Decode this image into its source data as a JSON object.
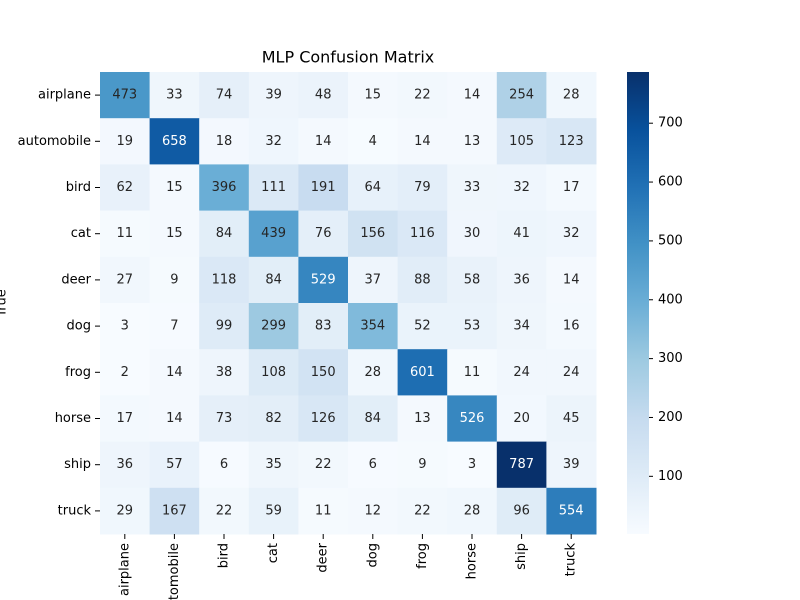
{
  "chart_data": {
    "type": "heatmap",
    "title": "MLP Confusion Matrix",
    "ylabel": "True",
    "x_categories": [
      "airplane",
      "automobile",
      "bird",
      "cat",
      "deer",
      "dog",
      "frog",
      "horse",
      "ship",
      "truck"
    ],
    "y_categories": [
      "airplane",
      "automobile",
      "bird",
      "cat",
      "deer",
      "dog",
      "frog",
      "horse",
      "ship",
      "truck"
    ],
    "values": [
      [
        473,
        33,
        74,
        39,
        48,
        15,
        22,
        14,
        254,
        28
      ],
      [
        19,
        658,
        18,
        32,
        14,
        4,
        14,
        13,
        105,
        123
      ],
      [
        62,
        15,
        396,
        111,
        191,
        64,
        79,
        33,
        32,
        17
      ],
      [
        11,
        15,
        84,
        439,
        76,
        156,
        116,
        30,
        41,
        32
      ],
      [
        27,
        9,
        118,
        84,
        529,
        37,
        88,
        58,
        36,
        14
      ],
      [
        3,
        7,
        99,
        299,
        83,
        354,
        52,
        53,
        34,
        16
      ],
      [
        2,
        14,
        38,
        108,
        150,
        28,
        601,
        11,
        24,
        24
      ],
      [
        17,
        14,
        73,
        82,
        126,
        84,
        13,
        526,
        20,
        45
      ],
      [
        36,
        57,
        6,
        35,
        22,
        6,
        9,
        3,
        787,
        39
      ],
      [
        29,
        167,
        22,
        59,
        11,
        12,
        22,
        28,
        96,
        554
      ]
    ],
    "colormap": "Blues",
    "clim": [
      2,
      787
    ],
    "cticks": [
      100,
      200,
      300,
      400,
      500,
      600,
      700
    ]
  }
}
